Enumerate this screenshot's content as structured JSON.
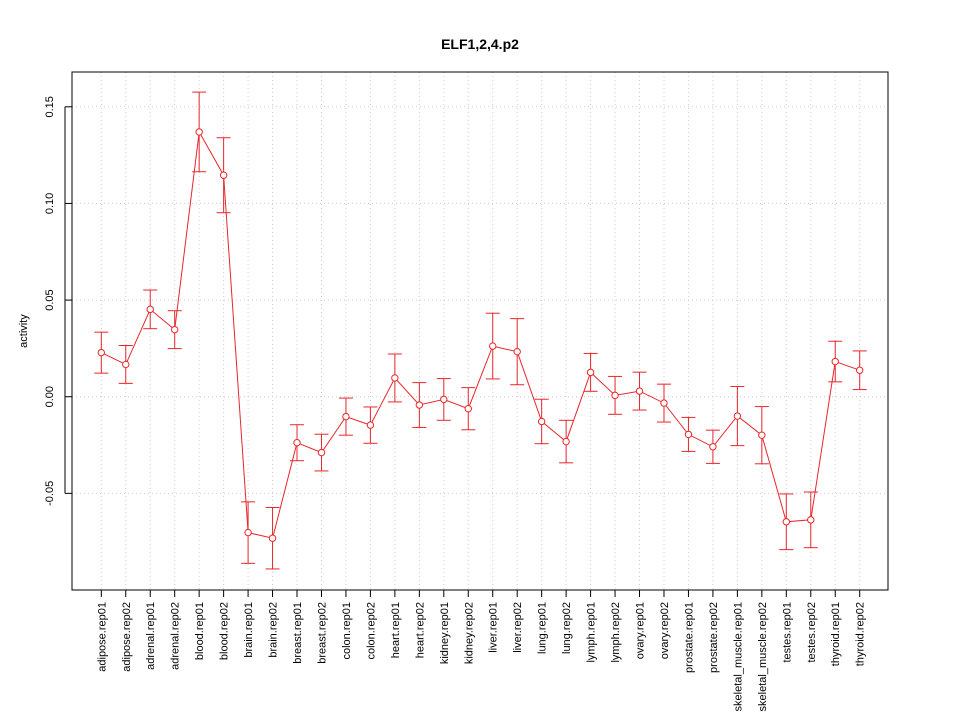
{
  "chart_data": {
    "type": "line",
    "title": "ELF1,2,4.p2",
    "xlabel": "",
    "ylabel": "activity",
    "ylim": [
      -0.1,
      0.168
    ],
    "yticks": [
      -0.05,
      0.0,
      0.05,
      0.1,
      0.15
    ],
    "ytick_labels": [
      "-0.05",
      "0.00",
      "0.05",
      "0.10",
      "0.15"
    ],
    "grid": true,
    "series_color": "#e8262b",
    "grid_color": "#cccccc",
    "categories": [
      "adipose.rep01",
      "adipose.rep02",
      "adrenal.rep01",
      "adrenal.rep02",
      "blood.rep01",
      "blood.rep02",
      "brain.rep01",
      "brain.rep02",
      "breast.rep01",
      "breast.rep02",
      "colon.rep01",
      "colon.rep02",
      "heart.rep01",
      "heart.rep02",
      "kidney.rep01",
      "kidney.rep02",
      "liver.rep01",
      "liver.rep02",
      "lung.rep01",
      "lung.rep02",
      "lymph.rep01",
      "lymph.rep02",
      "ovary.rep01",
      "ovary.rep02",
      "prostate.rep01",
      "prostate.rep02",
      "skeletal_muscle.rep01",
      "skeletal_muscle.rep02",
      "testes.rep01",
      "testes.rep02",
      "thyroid.rep01",
      "thyroid.rep02"
    ],
    "values": [
      0.0228,
      0.0167,
      0.0452,
      0.0347,
      0.137,
      0.1146,
      -0.0703,
      -0.0732,
      -0.0238,
      -0.0289,
      -0.0103,
      -0.0147,
      0.0097,
      -0.0043,
      -0.0014,
      -0.0062,
      0.0262,
      0.0233,
      -0.0128,
      -0.0232,
      0.0126,
      0.0007,
      0.0029,
      -0.0033,
      -0.0195,
      -0.0259,
      -0.01,
      -0.0199,
      -0.0647,
      -0.0637,
      0.0182,
      0.0137
    ],
    "lower": [
      0.0122,
      0.0069,
      0.0352,
      0.0249,
      0.1164,
      0.0952,
      -0.0862,
      -0.0891,
      -0.0331,
      -0.0384,
      -0.0199,
      -0.0241,
      -0.0027,
      -0.0159,
      -0.0122,
      -0.0171,
      0.0092,
      0.0062,
      -0.0243,
      -0.0342,
      0.0028,
      -0.0091,
      -0.0069,
      -0.0131,
      -0.0283,
      -0.0345,
      -0.0253,
      -0.0347,
      -0.0791,
      -0.0781,
      0.0077,
      0.0037
    ],
    "upper": [
      0.0334,
      0.0265,
      0.0552,
      0.0445,
      0.1576,
      0.134,
      -0.0544,
      -0.0573,
      -0.0145,
      -0.0194,
      -0.0007,
      -0.0053,
      0.0221,
      0.0073,
      0.0094,
      0.0047,
      0.0432,
      0.0404,
      -0.0013,
      -0.0122,
      0.0224,
      0.0105,
      0.0127,
      0.0065,
      -0.0107,
      -0.0173,
      0.0053,
      -0.0051,
      -0.0503,
      -0.0493,
      0.0287,
      0.0237
    ]
  }
}
